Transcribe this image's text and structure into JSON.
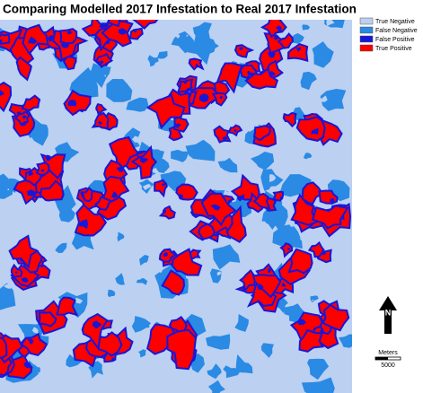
{
  "title": "Comparing Modelled 2017 Infestation to Real 2017 Infestation",
  "legend": [
    {
      "label": "True Negative",
      "color": "#bcd0f2"
    },
    {
      "label": "False Negative",
      "color": "#2a8ae4"
    },
    {
      "label": "False Positive",
      "color": "#1717d8"
    },
    {
      "label": "True Positive",
      "color": "#ff0000"
    }
  ],
  "north_arrow": {
    "label": "N"
  },
  "scale_bar": {
    "unit": "Meters",
    "label": "5000"
  }
}
